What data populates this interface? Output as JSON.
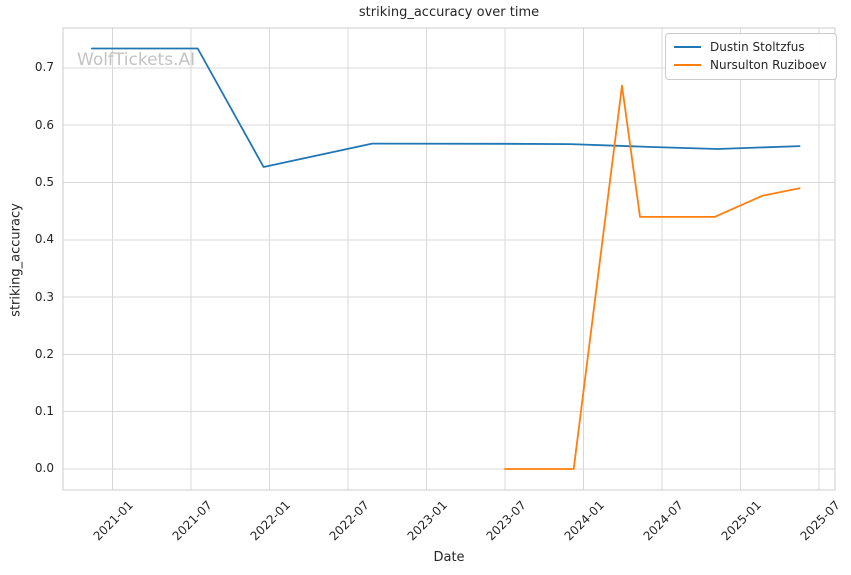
{
  "watermark": {
    "text": "WolfTickets.AI",
    "color": "#c3c3c3"
  },
  "chart_data": {
    "type": "line",
    "title": "striking_accuracy over time",
    "xlabel": "Date",
    "ylabel": "striking_accuracy",
    "x_tick_labels": [
      "2021-01",
      "2021-07",
      "2022-01",
      "2022-07",
      "2023-01",
      "2023-07",
      "2024-01",
      "2024-07",
      "2025-01",
      "2025-07"
    ],
    "y_tick_labels": [
      "0.0",
      "0.1",
      "0.2",
      "0.3",
      "0.4",
      "0.5",
      "0.6",
      "0.7"
    ],
    "xlim": [
      "2020-09-08",
      "2025-08-08"
    ],
    "ylim": [
      -0.0367,
      0.7697
    ],
    "grid": true,
    "grid_color": "#d9d9d9",
    "spine_color": "#cccccc",
    "text_color": "#262626",
    "legend_position": "upper right",
    "series": [
      {
        "name": "Dustin Stoltzfus",
        "color": "#1f77b4",
        "points": [
          [
            "2020-11-14",
            0.734
          ],
          [
            "2021-07-17",
            0.734
          ],
          [
            "2021-12-18",
            0.527
          ],
          [
            "2022-08-27",
            0.568
          ],
          [
            "2023-07-01",
            0.5675
          ],
          [
            "2023-12-02",
            0.567
          ],
          [
            "2024-06-08",
            0.562
          ],
          [
            "2024-11-09",
            0.5585
          ],
          [
            "2025-05-17",
            0.5635
          ]
        ]
      },
      {
        "name": "Nursulton Ruziboev",
        "color": "#ff7f0e",
        "points": [
          [
            "2023-07-01",
            0.0
          ],
          [
            "2023-12-09",
            0.0
          ],
          [
            "2024-03-30",
            0.669
          ],
          [
            "2024-05-11",
            0.44
          ],
          [
            "2024-11-02",
            0.44
          ],
          [
            "2025-02-22",
            0.477
          ],
          [
            "2025-05-17",
            0.49
          ]
        ]
      }
    ]
  }
}
